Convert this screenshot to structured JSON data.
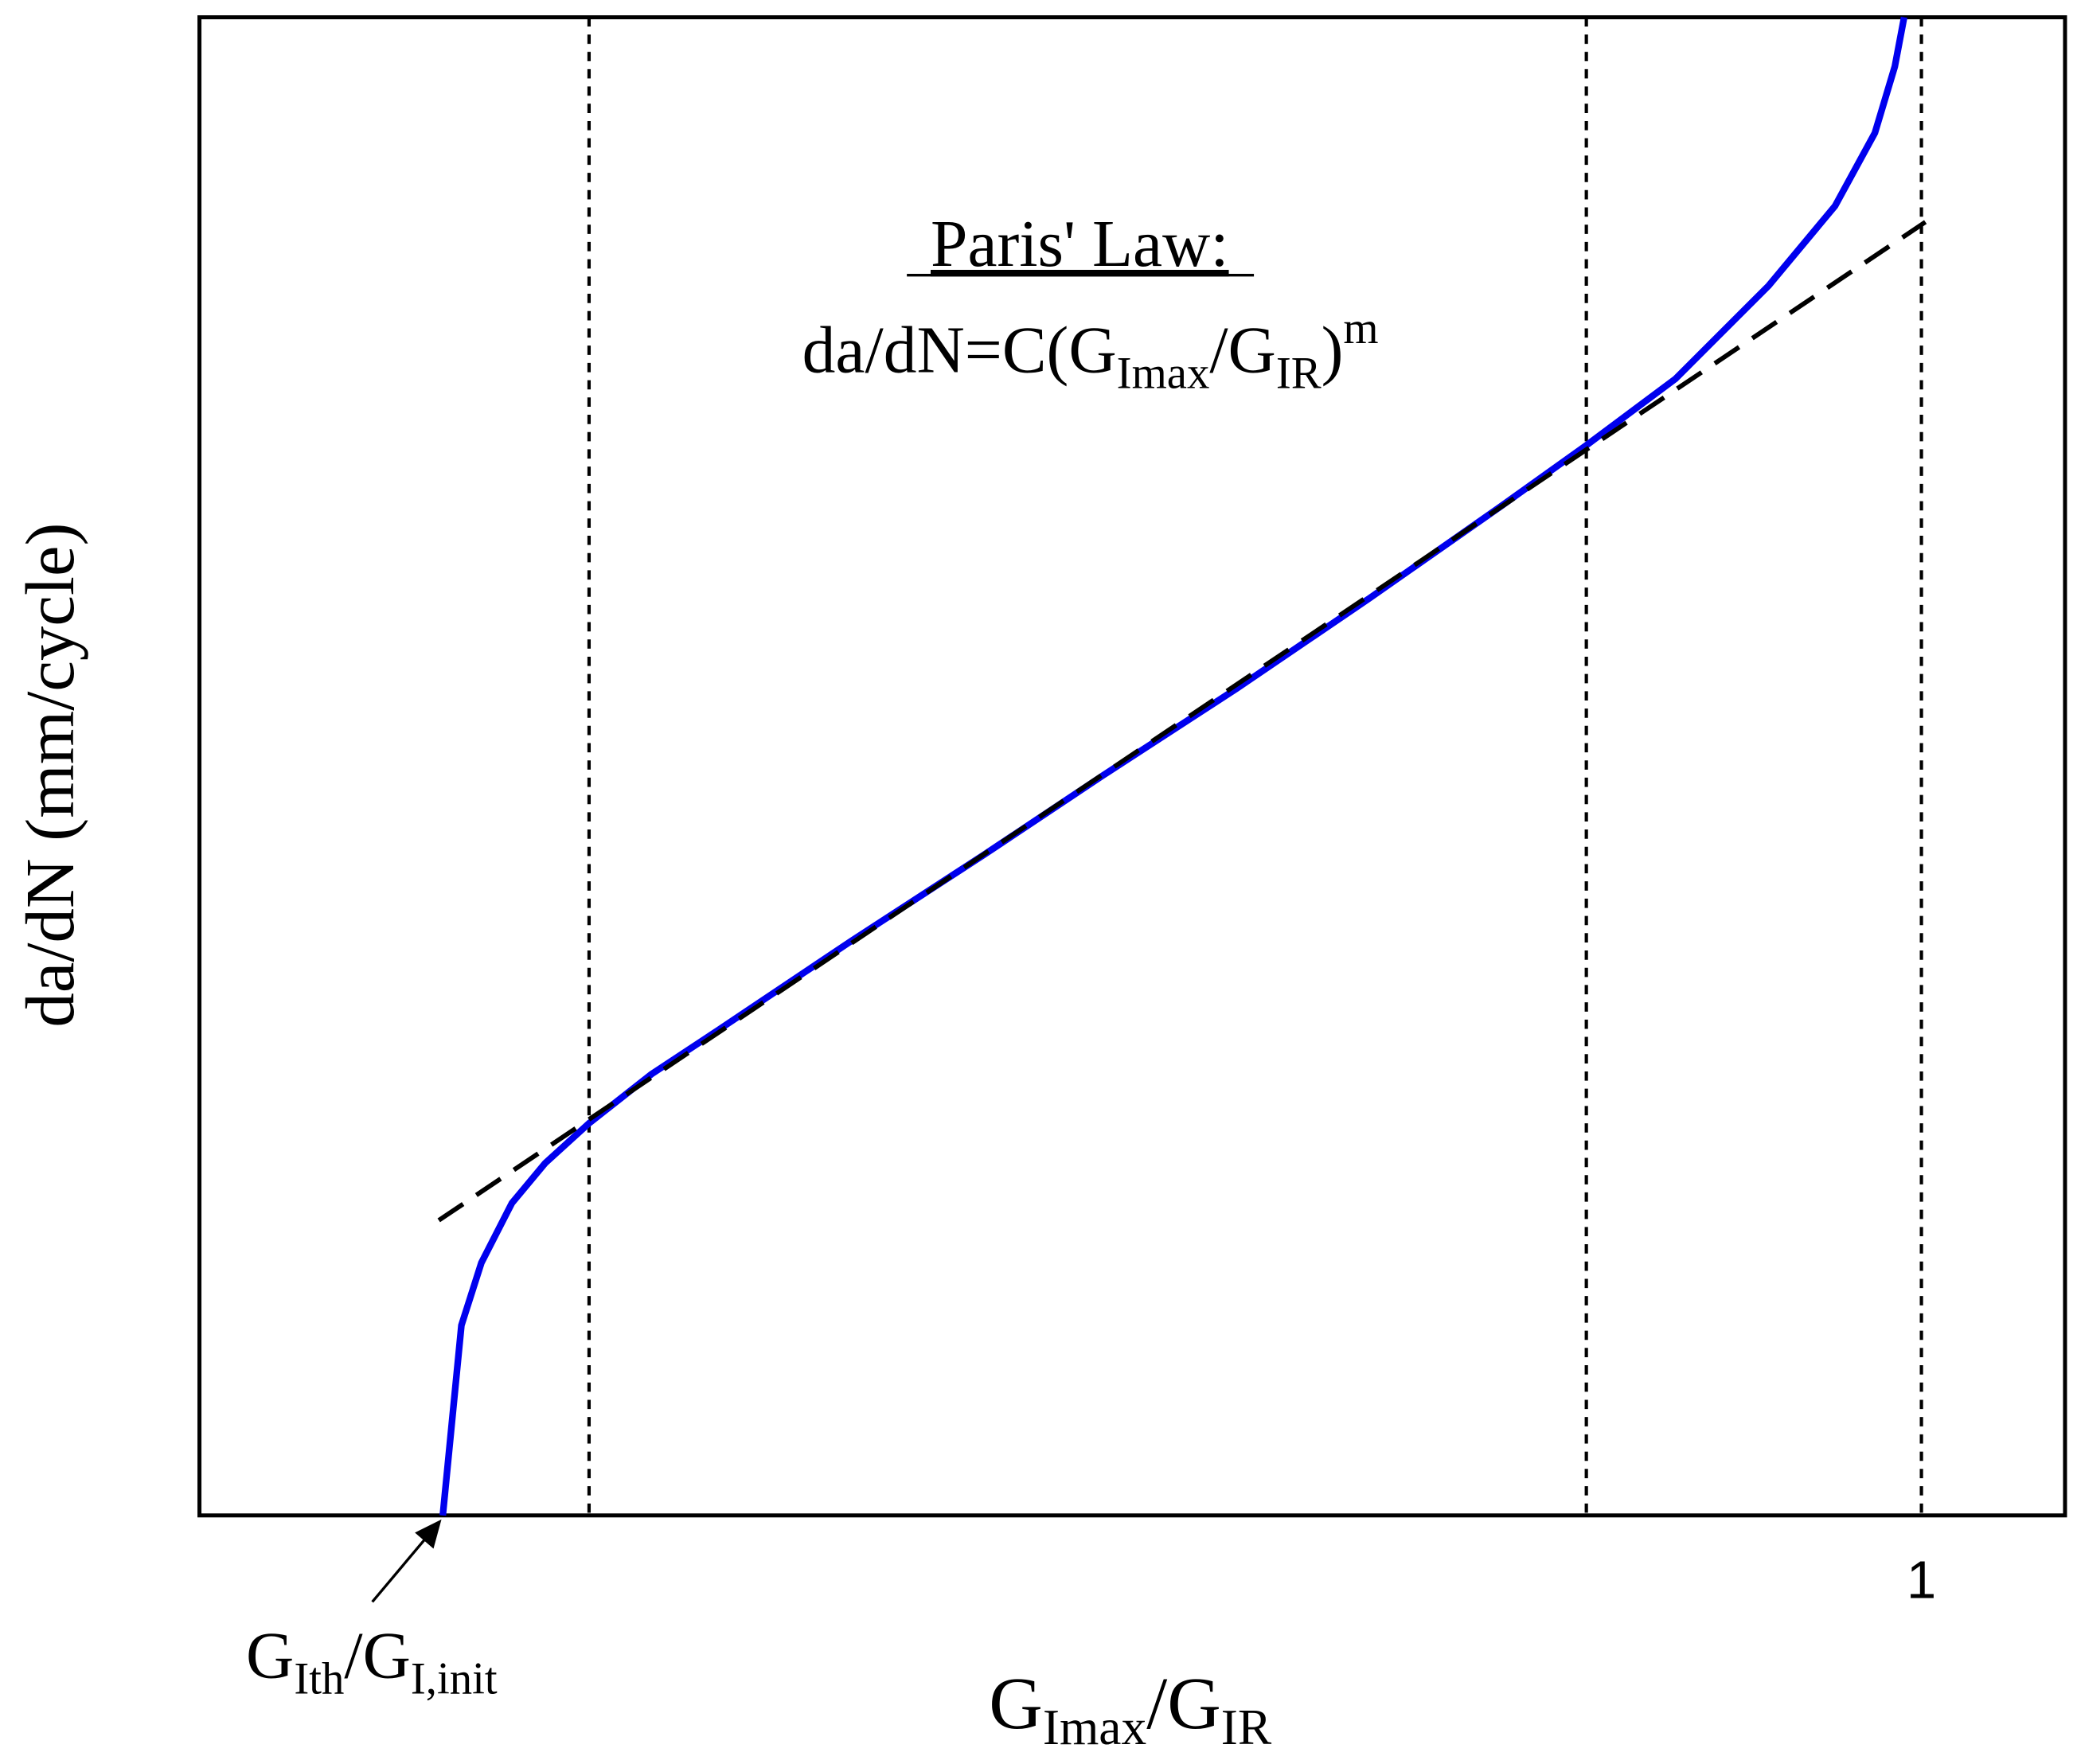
{
  "annotation": {
    "title": "Paris' Law:",
    "formula": {
      "main": "da/dN=C(G",
      "sub1": "Imax",
      "mid": "/G",
      "sub2": "IR",
      "close": ")",
      "sup": "m"
    }
  },
  "y_axis_label": "da/dN (mm/cycle)",
  "x_axis_label": {
    "g": "G",
    "sub1": "Imax",
    "mid": "/G",
    "sub2": "IR"
  },
  "threshold_label": {
    "g": "G",
    "sub1": "Ith",
    "mid": "/G",
    "sub2": "I,init"
  },
  "x_tick": "1"
}
